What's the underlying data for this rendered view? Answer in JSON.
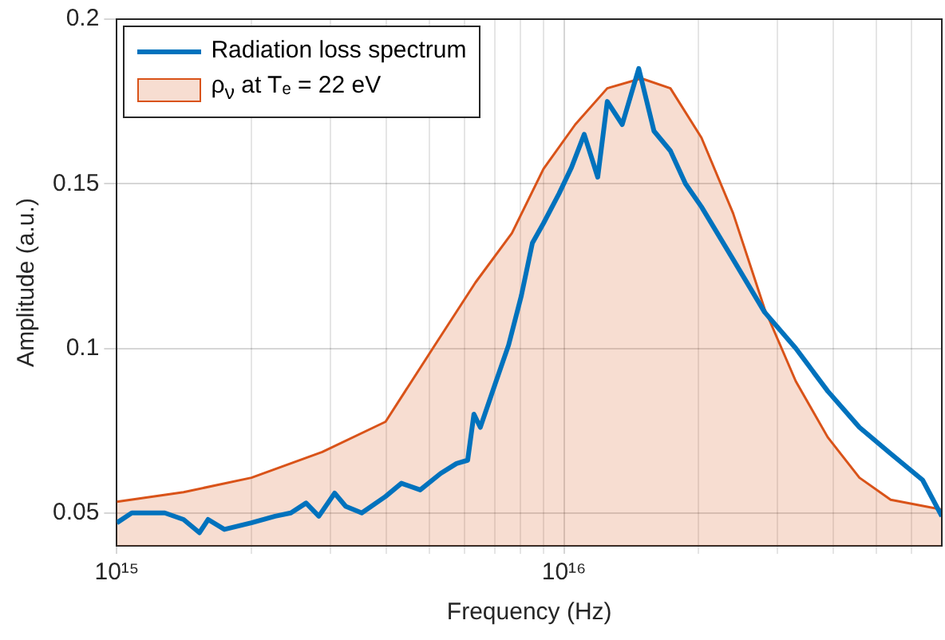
{
  "chart_data": {
    "type": "line",
    "xlabel": "Frequency (Hz)",
    "ylabel": "Amplitude (a.u.)",
    "log": "x",
    "grid": true,
    "legend": "top left",
    "xlim": [
      1000000000000000.0,
      7e+16
    ],
    "ylim": [
      0.04,
      0.2
    ],
    "xticks": [
      {
        "value": 1000000000000000.0,
        "label": "10¹⁵"
      },
      {
        "value": 2000000000000000.0,
        "label": null
      },
      {
        "value": 3000000000000000.0,
        "label": null
      },
      {
        "value": 4000000000000000.0,
        "label": null
      },
      {
        "value": 5000000000000000.0,
        "label": null
      },
      {
        "value": 6000000000000000.0,
        "label": null
      },
      {
        "value": 7000000000000000.0,
        "label": null
      },
      {
        "value": 8000000000000000.0,
        "label": null
      },
      {
        "value": 9000000000000000.0,
        "label": null
      },
      {
        "value": 1e+16,
        "label": "10¹⁶"
      },
      {
        "value": 2e+16,
        "label": null
      },
      {
        "value": 3e+16,
        "label": null
      },
      {
        "value": 4e+16,
        "label": null
      },
      {
        "value": 5e+16,
        "label": null
      },
      {
        "value": 6e+16,
        "label": null
      }
    ],
    "yticks": [
      0.05,
      0.1,
      0.15,
      0.2
    ],
    "series": [
      {
        "name": "ρ$_{ν}$ at Tₑ = 22 eV",
        "type": "area",
        "color": "#d95319",
        "x": [
          1000000000000000.0,
          1410000000000000.0,
          2000000000000000.0,
          2880000000000000.0,
          3990000000000000.0,
          5090000000000000.0,
          6340000000000000.0,
          7650000000000000.0,
          9000000000000000.0,
          1.06e+16,
          1.25e+16,
          1.49e+16,
          1.73e+16,
          2.03e+16,
          2.39e+16,
          2.81e+16,
          3.3e+16,
          3.89e+16,
          4.58e+16,
          5.38e+16,
          7e+16
        ],
        "values": [
          0.0534,
          0.0563,
          0.0607,
          0.0685,
          0.0777,
          0.1,
          0.12,
          0.135,
          0.1545,
          0.168,
          0.179,
          0.182,
          0.179,
          0.164,
          0.141,
          0.112,
          0.09,
          0.073,
          0.0607,
          0.054,
          0.051
        ]
      },
      {
        "name": "Radiation loss spectrum",
        "type": "line",
        "color": "#0072bd",
        "x": [
          1000000000000000.0,
          1080000000000000.0,
          1280000000000000.0,
          1410000000000000.0,
          1530000000000000.0,
          1600000000000000.0,
          1740000000000000.0,
          2000000000000000.0,
          2260000000000000.0,
          2450000000000000.0,
          2650000000000000.0,
          2830000000000000.0,
          3070000000000000.0,
          3250000000000000.0,
          3530000000000000.0,
          3990000000000000.0,
          4330000000000000.0,
          4770000000000000.0,
          5300000000000000.0,
          5750000000000000.0,
          6090000000000000.0,
          6290000000000000.0,
          6500000000000000.0,
          7050000000000000.0,
          7520000000000000.0,
          8030000000000000.0,
          8500000000000000.0,
          9000000000000000.0,
          9750000000000000.0,
          1.04e+16,
          1.11e+16,
          1.19e+16,
          1.25e+16,
          1.35e+16,
          1.47e+16,
          1.59e+16,
          1.73e+16,
          1.87e+16,
          2.03e+16,
          2.39e+16,
          2.81e+16,
          3.3e+16,
          3.89e+16,
          4.58e+16,
          5.38e+16,
          6.34e+16,
          7e+16
        ],
        "values": [
          0.047,
          0.05,
          0.05,
          0.048,
          0.044,
          0.048,
          0.045,
          0.047,
          0.049,
          0.05,
          0.053,
          0.049,
          0.056,
          0.052,
          0.05,
          0.055,
          0.059,
          0.057,
          0.062,
          0.065,
          0.066,
          0.08,
          0.076,
          0.09,
          0.101,
          0.116,
          0.132,
          0.138,
          0.147,
          0.155,
          0.165,
          0.152,
          0.175,
          0.168,
          0.185,
          0.166,
          0.16,
          0.15,
          0.143,
          0.127,
          0.111,
          0.1,
          0.087,
          0.076,
          0.068,
          0.06,
          0.049
        ]
      }
    ]
  }
}
